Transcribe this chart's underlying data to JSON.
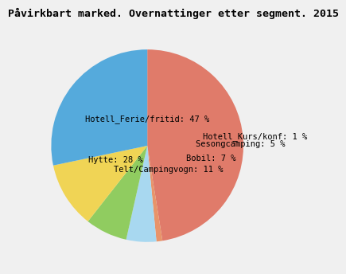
{
  "title": "Påvirkbart marked. Overnattinger etter segment. 2015",
  "segments": [
    {
      "label": "Hotell_Ferie/fritid: 47 %",
      "value": 47,
      "color": "#E07B6A"
    },
    {
      "label": "Hotell_Kurs/konf: 1 %",
      "value": 1,
      "color": "#E8946A"
    },
    {
      "label": "Sesongcamping: 5 %",
      "value": 5,
      "color": "#A8D8F0"
    },
    {
      "label": "Bobil: 7 %",
      "value": 7,
      "color": "#90CC60"
    },
    {
      "label": "Telt/Campingvogn: 11 %",
      "value": 11,
      "color": "#F0D455"
    },
    {
      "label": "Hytte: 28 %",
      "value": 28,
      "color": "#55AADC"
    }
  ],
  "title_fontsize": 9.5,
  "label_fontsize": 7.5,
  "background_color": "#F0F0F0",
  "startangle": 90,
  "label_positions": {
    "Ferie": [
      0.0,
      0.28,
      "center"
    ],
    "Kurs": [
      0.58,
      0.1,
      "left"
    ],
    "Sesong": [
      0.5,
      0.02,
      "left"
    ],
    "Bobil": [
      0.4,
      -0.13,
      "left"
    ],
    "Telt": [
      0.22,
      -0.25,
      "center"
    ],
    "Hytte": [
      -0.33,
      -0.15,
      "center"
    ]
  }
}
